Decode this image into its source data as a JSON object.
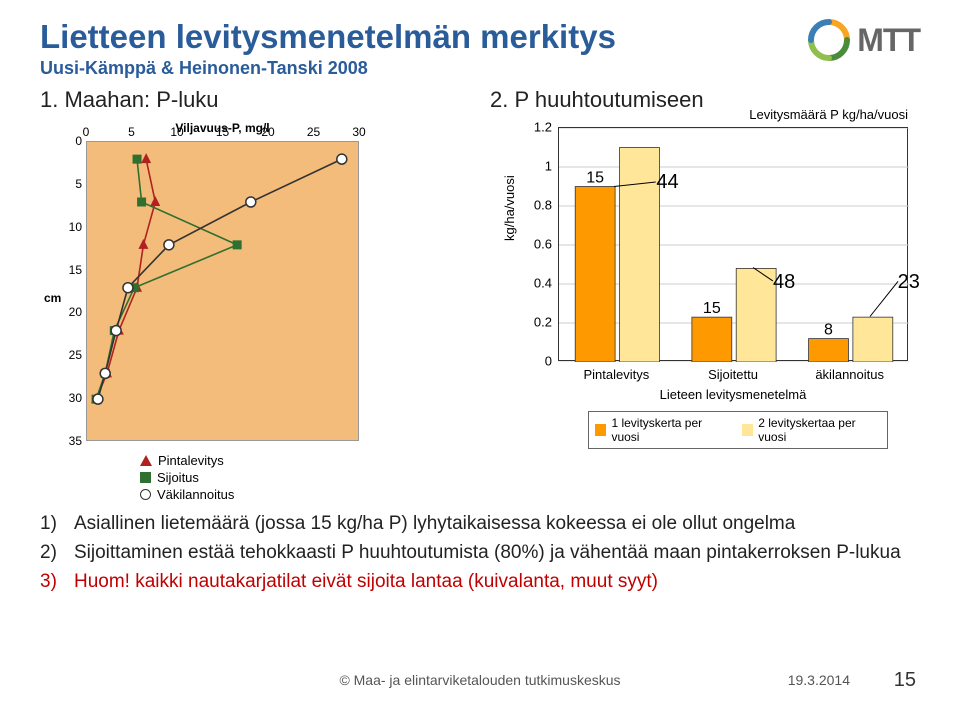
{
  "title": "Lietteen levitysmenetelmän merkitys",
  "subtitle": "Uusi-Kämppä & Heinonen-Tanski 2008",
  "logo_text": "MTT",
  "section1_head": "1. Maahan: P-luku",
  "section2_head": "2. P huuhtoutumiseen",
  "chart1": {
    "x_title": "Viljavuus-P, mg/l",
    "y_title": "cm",
    "xticks": [
      0,
      5,
      10,
      15,
      20,
      25,
      30
    ],
    "yticks": [
      0,
      5,
      10,
      15,
      20,
      25,
      30,
      35
    ],
    "xlim": [
      0,
      30
    ],
    "ylim": [
      0,
      35
    ],
    "background": "#f4bc7a",
    "series": [
      {
        "name": "Pintalevitys",
        "marker": "triangle",
        "color": "#b02222",
        "points": [
          [
            6.5,
            2
          ],
          [
            7.5,
            7
          ],
          [
            6.2,
            12
          ],
          [
            5.5,
            17
          ],
          [
            3.5,
            22
          ],
          [
            2.2,
            27
          ],
          [
            1.0,
            30
          ]
        ]
      },
      {
        "name": "Sijoitus",
        "marker": "square",
        "color": "#2f6f2f",
        "points": [
          [
            5.5,
            2
          ],
          [
            6.0,
            7
          ],
          [
            16.5,
            12
          ],
          [
            5.2,
            17
          ],
          [
            3.0,
            22
          ],
          [
            2.0,
            27
          ],
          [
            1.0,
            30
          ]
        ]
      },
      {
        "name": "Väkilannoitus",
        "marker": "circle",
        "color": "#333333",
        "fill": "#ffffff",
        "points": [
          [
            28,
            2
          ],
          [
            18,
            7
          ],
          [
            9,
            12
          ],
          [
            4.5,
            17
          ],
          [
            3.2,
            22
          ],
          [
            2.0,
            27
          ],
          [
            1.2,
            30
          ]
        ]
      }
    ],
    "legend": [
      "Pintalevitys",
      "Sijoitus",
      "Väkilannoitus"
    ]
  },
  "chart2": {
    "title": "Levitysmäärä P kg/ha/vuosi",
    "y_title": "kg/ha/vuosi",
    "ylim": [
      0,
      1.2
    ],
    "yticks": [
      0,
      0.2,
      0.4,
      0.6,
      0.8,
      1.0,
      1.2
    ],
    "x_axis_title": "Lieteen levitysmenetelmä",
    "categories": [
      "Pintalevitys",
      "Sijoitettu",
      "äkilannoitus"
    ],
    "callouts": {
      "0_0": "44",
      "1_0": "48",
      "2_0": "23"
    },
    "series": [
      {
        "name": "1 levityskerta per vuosi",
        "color": "#ff9900",
        "values": [
          0.9,
          0.23,
          0.12
        ],
        "labels": [
          "15",
          "15",
          "8"
        ]
      },
      {
        "name": "2 levityskertaa per vuosi",
        "color": "#ffe699",
        "values": [
          1.1,
          0.48,
          0.23
        ]
      }
    ],
    "bar_width": 0.38,
    "grid_color": "#cccccc",
    "plot_bg": "#ffffff"
  },
  "bullets": [
    {
      "n": "1)",
      "text": "Asiallinen lietemäärä (jossa 15 kg/ha P) lyhytaikaisessa kokeessa ei ole ollut ongelma",
      "red": false
    },
    {
      "n": "2)",
      "text": "Sijoittaminen estää tehokkaasti P huuhtoutumista (80%) ja vähentää maan pintakerroksen P-lukua",
      "red": false
    },
    {
      "n": "3)",
      "text": "Huom! kaikki nautakarjatilat eivät sijoita lantaa (kuivalanta, muut syyt)",
      "red": true
    }
  ],
  "footer": {
    "center": "© Maa- ja elintarviketalouden tutkimuskeskus",
    "date": "19.3.2014",
    "page": "15"
  }
}
